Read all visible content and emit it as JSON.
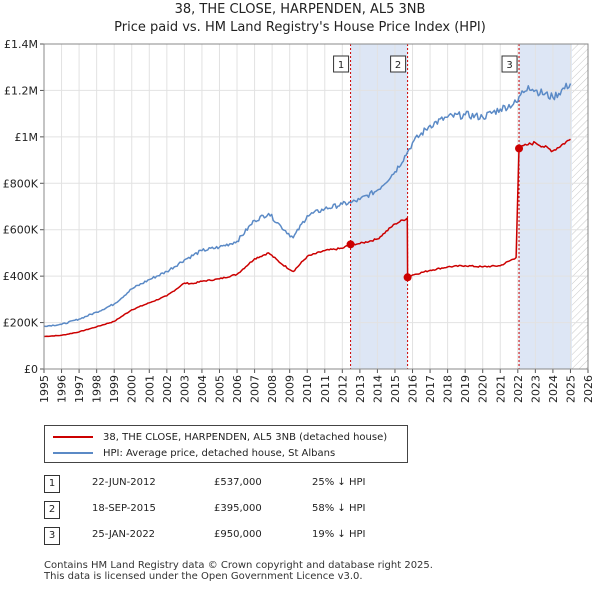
{
  "chart_data": {
    "type": "line",
    "title": "38, THE CLOSE, HARPENDEN, AL5 3NB",
    "subtitle": "Price paid vs. HM Land Registry's House Price Index (HPI)",
    "xlabel": "",
    "ylabel": "",
    "xlim": [
      1995,
      2026
    ],
    "ylim": [
      0,
      1400000
    ],
    "y_ticks": [
      0,
      200000,
      400000,
      600000,
      800000,
      1000000,
      1200000,
      1400000
    ],
    "y_tick_labels": [
      "£0",
      "£200K",
      "£400K",
      "£600K",
      "£800K",
      "£1M",
      "£1.2M",
      "£1.4M"
    ],
    "x_ticks": [
      1995,
      1996,
      1997,
      1998,
      1999,
      2000,
      2001,
      2002,
      2003,
      2004,
      2005,
      2006,
      2007,
      2008,
      2009,
      2010,
      2011,
      2012,
      2013,
      2014,
      2015,
      2016,
      2017,
      2018,
      2019,
      2020,
      2021,
      2022,
      2023,
      2024,
      2025,
      2026
    ],
    "grid": true,
    "shaded_periods": [
      [
        2012.47,
        2015.72
      ],
      [
        2022.07,
        2025.08
      ]
    ],
    "hatched_after": 2025.08,
    "series": [
      {
        "name": "38, THE CLOSE, HARPENDEN, AL5 3NB (detached house)",
        "color": "#cc0000",
        "x": [
          1995.0,
          1996.0,
          1997.0,
          1998.0,
          1999.0,
          2000.0,
          2001.0,
          2002.0,
          2003.0,
          2003.5,
          2004.0,
          2005.0,
          2006.0,
          2007.0,
          2007.8,
          2008.5,
          2009.2,
          2010.0,
          2011.0,
          2012.0,
          2012.47,
          2013.0,
          2014.0,
          2015.0,
          2015.7,
          2015.72,
          2016.0,
          2017.0,
          2018.0,
          2019.0,
          2020.0,
          2021.0,
          2021.9,
          2022.07,
          2022.5,
          2023.0,
          2024.0,
          2025.0
        ],
        "values": [
          140000,
          145000,
          160000,
          182000,
          205000,
          255000,
          285000,
          315000,
          370000,
          368000,
          378000,
          388000,
          408000,
          475000,
          500000,
          455000,
          420000,
          485000,
          510000,
          520000,
          537000,
          540000,
          560000,
          625000,
          650000,
          395000,
          405000,
          425000,
          440000,
          445000,
          440000,
          445000,
          480000,
          950000,
          965000,
          975000,
          940000,
          990000
        ]
      },
      {
        "name": "HPI: Average price, detached house, St Albans",
        "color": "#5b8ac6",
        "x": [
          1995.0,
          1996.0,
          1997.0,
          1998.0,
          1999.0,
          2000.0,
          2001.0,
          2002.0,
          2003.0,
          2004.0,
          2005.0,
          2006.0,
          2007.0,
          2007.8,
          2008.5,
          2009.2,
          2010.0,
          2011.0,
          2012.0,
          2012.47,
          2013.0,
          2014.0,
          2015.0,
          2015.72,
          2016.0,
          2017.0,
          2018.0,
          2019.0,
          2020.0,
          2021.0,
          2022.0,
          2022.07,
          2022.6,
          2023.0,
          2024.0,
          2025.0
        ],
        "values": [
          185000,
          192000,
          215000,
          245000,
          280000,
          345000,
          385000,
          420000,
          470000,
          510000,
          525000,
          550000,
          640000,
          670000,
          615000,
          565000,
          660000,
          690000,
          710000,
          716000,
          730000,
          770000,
          850000,
          935000,
          975000,
          1050000,
          1085000,
          1095000,
          1085000,
          1120000,
          1150000,
          1173000,
          1220000,
          1200000,
          1170000,
          1230000
        ]
      }
    ],
    "sales": [
      {
        "label": "1",
        "date": "22-JUN-2012",
        "x": 2012.47,
        "price": 537000,
        "price_text": "£537,000",
        "hpi_text": "25% ↓ HPI"
      },
      {
        "label": "2",
        "date": "18-SEP-2015",
        "x": 2015.72,
        "price": 395000,
        "price_text": "£395,000",
        "hpi_text": "58% ↓ HPI"
      },
      {
        "label": "3",
        "date": "25-JAN-2022",
        "x": 2022.07,
        "price": 950000,
        "price_text": "£950,000",
        "hpi_text": "19% ↓ HPI"
      }
    ]
  },
  "footer": {
    "line1": "Contains HM Land Registry data © Crown copyright and database right 2025.",
    "line2": "This data is licensed under the Open Government Licence v3.0."
  }
}
